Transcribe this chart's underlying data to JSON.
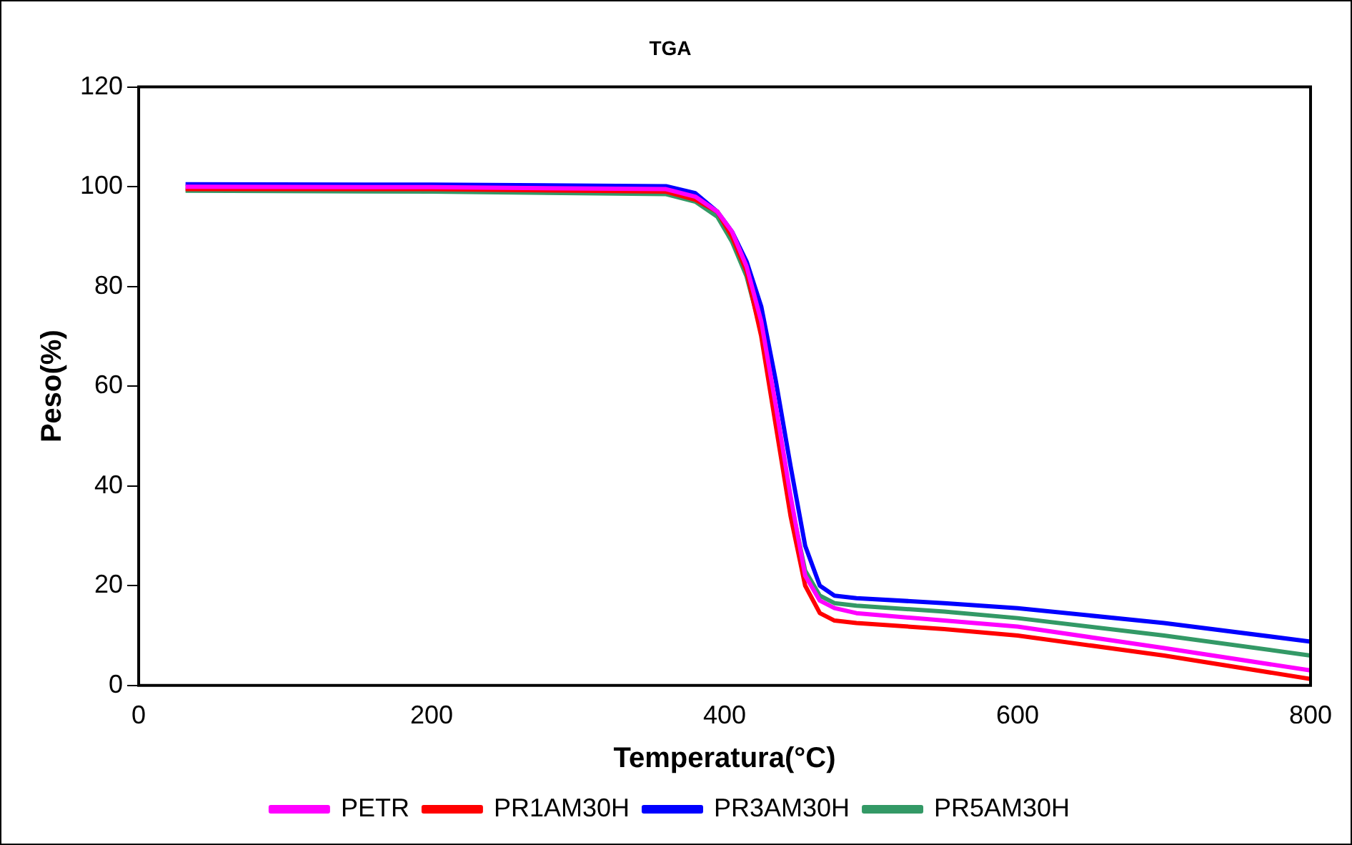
{
  "chart_data": {
    "type": "line",
    "title": "TGA",
    "xlabel": "Temperatura(°C)",
    "ylabel": "Peso(%)",
    "xlim": [
      0,
      800
    ],
    "xticks": [
      0,
      200,
      400,
      600,
      800
    ],
    "ylim": [
      0,
      120
    ],
    "yticks": [
      0,
      20,
      40,
      60,
      80,
      100,
      120
    ],
    "grid": false,
    "legend": "bottom",
    "marker": "none",
    "line_style": "solid",
    "x": [
      32,
      200,
      360,
      380,
      395,
      405,
      415,
      425,
      435,
      445,
      455,
      465,
      475,
      490,
      550,
      600,
      700,
      800
    ],
    "series": [
      {
        "name": "PETR",
        "color": "#ff00ff",
        "values": [
          100,
          99.9,
          99.5,
          98,
          95,
          91,
          84,
          73,
          56,
          38,
          22,
          17,
          15.5,
          14.5,
          13,
          11.8,
          7.5,
          3
        ]
      },
      {
        "name": "PR1AM30H",
        "color": "#ff0000",
        "values": [
          99.5,
          99.5,
          99,
          97.4,
          95,
          90,
          83,
          70,
          52,
          34,
          20,
          14.5,
          13,
          12.5,
          11.3,
          10,
          6,
          1.3
        ]
      },
      {
        "name": "PR3AM30H",
        "color": "#0000ff",
        "values": [
          100.5,
          100.4,
          100.1,
          98.7,
          95,
          91,
          85,
          76,
          61,
          44,
          28,
          20,
          18,
          17.5,
          16.5,
          15.5,
          12.5,
          8.8
        ]
      },
      {
        "name": "PR5AM30H",
        "color": "#339966",
        "values": [
          99.2,
          99,
          98.5,
          97,
          94,
          89,
          82,
          71,
          55,
          37,
          23,
          18,
          16.5,
          16,
          14.8,
          13.5,
          10,
          6
        ]
      }
    ]
  }
}
